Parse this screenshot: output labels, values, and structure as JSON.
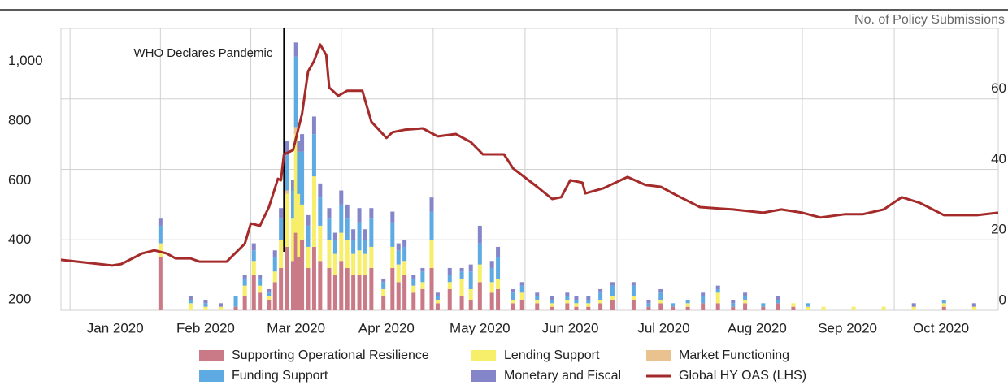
{
  "chart_data": {
    "type": "bar",
    "axis_title_right": "No. of Policy Submissions",
    "annotation": {
      "text": "WHO Declares Pandemic",
      "x": 71
    },
    "xlim": [
      -3,
      308
    ],
    "xticks": [
      {
        "value": 15,
        "label": "Jan 2020"
      },
      {
        "value": 45,
        "label": "Feb 2020"
      },
      {
        "value": 75,
        "label": "Mar 2020"
      },
      {
        "value": 105,
        "label": "Apr 2020"
      },
      {
        "value": 136,
        "label": "May 2020"
      },
      {
        "value": 166,
        "label": "Jun 2020"
      },
      {
        "value": 197,
        "label": "Jul 2020"
      },
      {
        "value": 228,
        "label": "Aug 2020"
      },
      {
        "value": 258,
        "label": "Sep 2020"
      },
      {
        "value": 289,
        "label": "Oct 2020"
      }
    ],
    "ylim": [
      165,
      1110
    ],
    "yticks": [
      200,
      400,
      600,
      800,
      {
        "value": 1000,
        "label": "1,000"
      }
    ],
    "y2lim": [
      0,
      80
    ],
    "y2ticks": [
      0,
      20,
      40,
      60
    ],
    "grid": true,
    "x": [
      30,
      40,
      45,
      50,
      55,
      58,
      61,
      63,
      66,
      68,
      70,
      72,
      74,
      75,
      76,
      77,
      79,
      81,
      83,
      86,
      88,
      90,
      92,
      94,
      96,
      98,
      100,
      104,
      107,
      109,
      111,
      114,
      117,
      120,
      122,
      126,
      130,
      133,
      136,
      140,
      142,
      147,
      150,
      155,
      160,
      165,
      168,
      172,
      176,
      180,
      187,
      192,
      196,
      200,
      205,
      210,
      215,
      220,
      224,
      230,
      235,
      240,
      245,
      250,
      260,
      270,
      280,
      290,
      300
    ],
    "series": [
      {
        "name": "Supporting Operational Resilience",
        "color": "#c97a86",
        "axis": "y2",
        "values": [
          15,
          0,
          0,
          0,
          1,
          4,
          10,
          5,
          3,
          8,
          12,
          18,
          14,
          22,
          15,
          20,
          12,
          18,
          14,
          12,
          10,
          14,
          12,
          10,
          10,
          10,
          12,
          4,
          12,
          8,
          10,
          5,
          6,
          12,
          2,
          6,
          4,
          3,
          8,
          5,
          6,
          2,
          3,
          2,
          1,
          2,
          1,
          1,
          2,
          3,
          3,
          1,
          2,
          1,
          1,
          2,
          2,
          1,
          2,
          1,
          2,
          1,
          0,
          0,
          0,
          0,
          0,
          1,
          0
        ]
      },
      {
        "name": "Lending Support",
        "color": "#f7ee6a",
        "axis": "y2",
        "values": [
          4,
          2,
          1,
          1,
          0,
          3,
          4,
          2,
          1,
          3,
          8,
          15,
          12,
          28,
          18,
          10,
          6,
          20,
          10,
          8,
          6,
          8,
          8,
          6,
          7,
          6,
          6,
          2,
          6,
          5,
          4,
          2,
          2,
          8,
          1,
          2,
          5,
          3,
          5,
          3,
          3,
          1,
          2,
          1,
          1,
          1,
          1,
          1,
          1,
          1,
          1,
          0,
          1,
          0,
          1,
          0,
          3,
          0,
          1,
          0,
          0,
          1,
          1,
          1,
          1,
          1,
          1,
          1,
          1
        ]
      },
      {
        "name": "Market Functioning",
        "color": "#e9c28f",
        "axis": "y2",
        "values": [
          0,
          0,
          0,
          0,
          0,
          0,
          0,
          0,
          0,
          0,
          0,
          1,
          0,
          2,
          0,
          0,
          0,
          0,
          0,
          0,
          0,
          0,
          0,
          0,
          0,
          0,
          0,
          0,
          0,
          0,
          0,
          0,
          0,
          0,
          0,
          0,
          0,
          0,
          0,
          0,
          0,
          0,
          0,
          0,
          0,
          0,
          0,
          0,
          0,
          0,
          0,
          0,
          0,
          0,
          0,
          0,
          0,
          0,
          0,
          0,
          0,
          0,
          0,
          0,
          0,
          0,
          0,
          0,
          0
        ]
      },
      {
        "name": "Funding Support",
        "color": "#5eaae2",
        "axis": "y2",
        "values": [
          5,
          1,
          1,
          0,
          3,
          2,
          3,
          2,
          1,
          4,
          6,
          10,
          8,
          20,
          12,
          15,
          6,
          12,
          8,
          6,
          4,
          8,
          6,
          4,
          8,
          4,
          8,
          2,
          7,
          4,
          4,
          2,
          3,
          8,
          1,
          2,
          2,
          5,
          6,
          4,
          6,
          2,
          2,
          1,
          1,
          1,
          1,
          1,
          2,
          3,
          3,
          1,
          2,
          1,
          1,
          2,
          1,
          1,
          1,
          1,
          1,
          0,
          1,
          0,
          0,
          0,
          0,
          1,
          0
        ]
      },
      {
        "name": "Monetary and Fiscal",
        "color": "#8585c9",
        "axis": "y2",
        "values": [
          2,
          1,
          1,
          1,
          0,
          1,
          2,
          1,
          1,
          2,
          3,
          4,
          3,
          4,
          3,
          5,
          3,
          5,
          4,
          3,
          2,
          4,
          4,
          3,
          4,
          3,
          3,
          1,
          3,
          2,
          2,
          1,
          1,
          4,
          1,
          2,
          1,
          2,
          5,
          2,
          3,
          1,
          1,
          1,
          1,
          1,
          1,
          1,
          1,
          1,
          1,
          1,
          1,
          0,
          0,
          1,
          1,
          1,
          1,
          0,
          1,
          0,
          0,
          0,
          0,
          0,
          1,
          0,
          1
        ]
      }
    ],
    "line": {
      "name": "Global HY OAS (LHS)",
      "color": "#a52a2a",
      "x": [
        -3,
        14,
        17,
        24,
        28,
        32,
        35,
        40,
        43,
        52,
        58,
        60,
        63,
        66,
        69,
        70,
        71,
        74,
        77,
        79,
        81,
        83,
        85,
        86,
        89,
        92,
        97,
        100,
        105,
        107,
        111,
        117,
        122,
        128,
        133,
        137,
        144,
        147,
        155,
        160,
        163,
        166,
        170,
        171,
        177,
        185,
        191,
        196,
        201,
        209,
        220,
        230,
        236,
        243,
        249,
        257,
        263,
        270,
        276,
        282,
        290,
        301,
        308
      ],
      "values": [
        334,
        315,
        320,
        356,
        366,
        356,
        339,
        339,
        328,
        328,
        388,
        456,
        448,
        511,
        606,
        601,
        688,
        702,
        824,
        966,
        1001,
        1056,
        1021,
        912,
        884,
        901,
        901,
        797,
        743,
        762,
        770,
        775,
        748,
        756,
        729,
        688,
        688,
        641,
        579,
        538,
        544,
        601,
        593,
        557,
        574,
        612,
        585,
        579,
        552,
        511,
        503,
        492,
        503,
        492,
        476,
        487,
        487,
        503,
        544,
        525,
        484,
        484,
        492
      ]
    }
  }
}
